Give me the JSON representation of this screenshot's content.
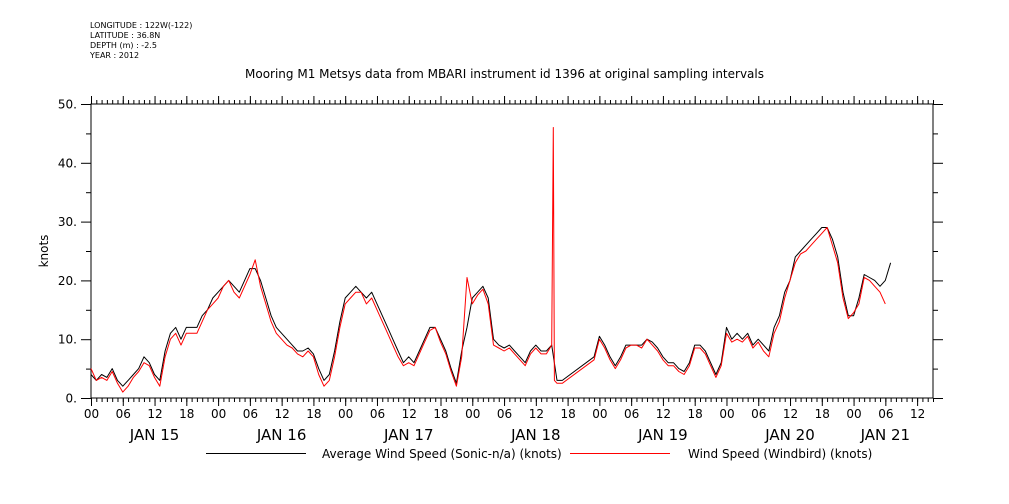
{
  "meta": {
    "longitude": "LONGITUDE : 122W(-122)",
    "latitude": "LATITUDE : 36.8N",
    "depth": "DEPTH (m) : -2.5",
    "year": "YEAR : 2012"
  },
  "chart_data": {
    "type": "line",
    "title": "Mooring M1 Metsys data from MBARI instrument id 1396 at original sampling intervals",
    "ylabel": "knots",
    "xlabel": "",
    "ylim": [
      0,
      50
    ],
    "xlim": [
      0,
      159
    ],
    "x_unit": "hours since JAN 15 00",
    "yticks": [
      0,
      10,
      20,
      30,
      40,
      50
    ],
    "ytick_labels": [
      "0.",
      "10.",
      "20.",
      "30.",
      "40.",
      "50."
    ],
    "hour_labels": [
      "00",
      "06",
      "12",
      "18",
      "00",
      "06",
      "12",
      "18",
      "00",
      "06",
      "12",
      "18",
      "00",
      "06",
      "12",
      "18",
      "00",
      "06",
      "12",
      "18",
      "00",
      "06",
      "12",
      "18",
      "00",
      "06",
      "12"
    ],
    "hour_positions": [
      0,
      6,
      12,
      18,
      24,
      30,
      36,
      42,
      48,
      54,
      60,
      66,
      72,
      78,
      84,
      90,
      96,
      102,
      108,
      114,
      120,
      126,
      132,
      138,
      144,
      150,
      156
    ],
    "day_labels": [
      "JAN 15",
      "JAN 16",
      "JAN 17",
      "JAN 18",
      "JAN 19",
      "JAN 20",
      "JAN 21"
    ],
    "day_positions": [
      12,
      36,
      60,
      84,
      108,
      132,
      150
    ],
    "grid": false,
    "legend_position": "bottom",
    "series": [
      {
        "name": "Average Wind Speed (Sonic-n/a) (knots)",
        "color": "#000000",
        "points": [
          [
            0,
            4
          ],
          [
            1,
            3
          ],
          [
            2,
            4
          ],
          [
            3,
            3.5
          ],
          [
            4,
            5
          ],
          [
            5,
            3
          ],
          [
            6,
            2
          ],
          [
            7,
            3
          ],
          [
            8,
            4
          ],
          [
            9,
            5
          ],
          [
            10,
            7
          ],
          [
            11,
            6
          ],
          [
            12,
            4
          ],
          [
            13,
            3
          ],
          [
            14,
            8
          ],
          [
            15,
            11
          ],
          [
            16,
            12
          ],
          [
            17,
            10
          ],
          [
            18,
            12
          ],
          [
            19,
            12
          ],
          [
            20,
            12
          ],
          [
            21,
            14
          ],
          [
            22,
            15
          ],
          [
            23,
            17
          ],
          [
            24,
            18
          ],
          [
            25,
            19
          ],
          [
            26,
            20
          ],
          [
            27,
            19
          ],
          [
            28,
            18
          ],
          [
            29,
            20
          ],
          [
            30,
            22
          ],
          [
            31,
            22
          ],
          [
            32,
            20
          ],
          [
            33,
            17
          ],
          [
            34,
            14
          ],
          [
            35,
            12
          ],
          [
            36,
            11
          ],
          [
            37,
            10
          ],
          [
            38,
            9
          ],
          [
            39,
            8
          ],
          [
            40,
            8
          ],
          [
            41,
            8.5
          ],
          [
            42,
            7.5
          ],
          [
            43,
            5
          ],
          [
            44,
            3
          ],
          [
            45,
            4
          ],
          [
            46,
            8
          ],
          [
            47,
            13
          ],
          [
            48,
            17
          ],
          [
            49,
            18
          ],
          [
            50,
            19
          ],
          [
            51,
            18
          ],
          [
            52,
            17
          ],
          [
            53,
            18
          ],
          [
            54,
            16
          ],
          [
            55,
            14
          ],
          [
            56,
            12
          ],
          [
            57,
            10
          ],
          [
            58,
            8
          ],
          [
            59,
            6
          ],
          [
            60,
            7
          ],
          [
            61,
            6
          ],
          [
            62,
            8
          ],
          [
            63,
            10
          ],
          [
            64,
            12
          ],
          [
            65,
            12
          ],
          [
            66,
            10
          ],
          [
            67,
            8
          ],
          [
            68,
            5
          ],
          [
            69,
            2.5
          ],
          [
            70,
            8
          ],
          [
            71,
            12
          ],
          [
            72,
            17
          ],
          [
            73,
            18
          ],
          [
            74,
            19
          ],
          [
            75,
            17
          ],
          [
            76,
            10
          ],
          [
            77,
            9
          ],
          [
            78,
            8.5
          ],
          [
            79,
            9
          ],
          [
            80,
            8
          ],
          [
            81,
            7
          ],
          [
            82,
            6
          ],
          [
            83,
            8
          ],
          [
            84,
            9
          ],
          [
            85,
            8
          ],
          [
            86,
            8
          ],
          [
            87,
            9
          ],
          [
            88,
            3
          ],
          [
            89,
            3
          ],
          [
            95,
            7
          ],
          [
            96,
            10.5
          ],
          [
            97,
            9
          ],
          [
            98,
            7
          ],
          [
            99,
            5.5
          ],
          [
            100,
            7
          ],
          [
            101,
            9
          ],
          [
            102,
            9
          ],
          [
            103,
            9
          ],
          [
            104,
            9
          ],
          [
            105,
            10
          ],
          [
            106,
            9.5
          ],
          [
            107,
            8.5
          ],
          [
            108,
            7
          ],
          [
            109,
            6
          ],
          [
            110,
            6
          ],
          [
            111,
            5
          ],
          [
            112,
            4.5
          ],
          [
            113,
            6
          ],
          [
            114,
            9
          ],
          [
            115,
            9
          ],
          [
            116,
            8
          ],
          [
            117,
            6
          ],
          [
            118,
            4
          ],
          [
            119,
            6
          ],
          [
            120,
            12
          ],
          [
            121,
            10
          ],
          [
            122,
            11
          ],
          [
            123,
            10
          ],
          [
            124,
            11
          ],
          [
            125,
            9
          ],
          [
            126,
            10
          ],
          [
            127,
            9
          ],
          [
            128,
            8
          ],
          [
            129,
            12
          ],
          [
            130,
            14
          ],
          [
            131,
            18
          ],
          [
            132,
            20
          ],
          [
            133,
            24
          ],
          [
            134,
            25
          ],
          [
            135,
            26
          ],
          [
            136,
            27
          ],
          [
            137,
            28
          ],
          [
            138,
            29
          ],
          [
            139,
            29
          ],
          [
            140,
            27
          ],
          [
            141,
            24
          ],
          [
            142,
            18
          ],
          [
            143,
            14
          ],
          [
            144,
            14
          ],
          [
            145,
            17
          ],
          [
            146,
            21
          ],
          [
            147,
            20.5
          ],
          [
            148,
            20
          ],
          [
            149,
            19
          ],
          [
            150,
            20
          ],
          [
            151,
            23
          ]
        ]
      },
      {
        "name": "Wind Speed (Windbird) (knots)",
        "color": "#ff0000",
        "points": [
          [
            0,
            5
          ],
          [
            1,
            3
          ],
          [
            2,
            3.5
          ],
          [
            3,
            3
          ],
          [
            4,
            4.5
          ],
          [
            5,
            2.5
          ],
          [
            6,
            1
          ],
          [
            7,
            2
          ],
          [
            8,
            3.5
          ],
          [
            9,
            4.5
          ],
          [
            10,
            6
          ],
          [
            11,
            5.5
          ],
          [
            12,
            3.5
          ],
          [
            13,
            2
          ],
          [
            14,
            7
          ],
          [
            15,
            10
          ],
          [
            16,
            11
          ],
          [
            17,
            9
          ],
          [
            18,
            11
          ],
          [
            19,
            11
          ],
          [
            20,
            11
          ],
          [
            21,
            13
          ],
          [
            22,
            15
          ],
          [
            23,
            16
          ],
          [
            24,
            17
          ],
          [
            25,
            19
          ],
          [
            26,
            20
          ],
          [
            27,
            18
          ],
          [
            28,
            17
          ],
          [
            29,
            19
          ],
          [
            30,
            21
          ],
          [
            31,
            23.5
          ],
          [
            32,
            19
          ],
          [
            33,
            16
          ],
          [
            34,
            13
          ],
          [
            35,
            11
          ],
          [
            36,
            10
          ],
          [
            37,
            9
          ],
          [
            38,
            8.5
          ],
          [
            39,
            7.5
          ],
          [
            40,
            7
          ],
          [
            41,
            8
          ],
          [
            42,
            7
          ],
          [
            43,
            4
          ],
          [
            44,
            2
          ],
          [
            45,
            3
          ],
          [
            46,
            7
          ],
          [
            47,
            12
          ],
          [
            48,
            16
          ],
          [
            49,
            17
          ],
          [
            50,
            18
          ],
          [
            51,
            18
          ],
          [
            52,
            16
          ],
          [
            53,
            17
          ],
          [
            54,
            15
          ],
          [
            55,
            13
          ],
          [
            56,
            11
          ],
          [
            57,
            9
          ],
          [
            58,
            7
          ],
          [
            59,
            5.5
          ],
          [
            60,
            6
          ],
          [
            61,
            5.5
          ],
          [
            62,
            7.5
          ],
          [
            63,
            9.5
          ],
          [
            64,
            11.5
          ],
          [
            65,
            12
          ],
          [
            66,
            9.5
          ],
          [
            67,
            7.5
          ],
          [
            68,
            4.5
          ],
          [
            69,
            2
          ],
          [
            70,
            7
          ],
          [
            71,
            20.5
          ],
          [
            72,
            16
          ],
          [
            73,
            17.5
          ],
          [
            74,
            18.5
          ],
          [
            75,
            16
          ],
          [
            76,
            9
          ],
          [
            77,
            8.5
          ],
          [
            78,
            8
          ],
          [
            79,
            8.5
          ],
          [
            80,
            7.5
          ],
          [
            81,
            6.5
          ],
          [
            82,
            5.5
          ],
          [
            83,
            7.5
          ],
          [
            84,
            8.5
          ],
          [
            85,
            7.5
          ],
          [
            86,
            7.5
          ],
          [
            87,
            9
          ],
          [
            87.3,
            46
          ],
          [
            87.5,
            3
          ],
          [
            88,
            2.5
          ],
          [
            89,
            2.5
          ],
          [
            95,
            6.5
          ],
          [
            96,
            10
          ],
          [
            97,
            8.5
          ],
          [
            98,
            6.5
          ],
          [
            99,
            5
          ],
          [
            100,
            6.5
          ],
          [
            101,
            8.5
          ],
          [
            102,
            9
          ],
          [
            103,
            9
          ],
          [
            104,
            8.5
          ],
          [
            105,
            10
          ],
          [
            106,
            9
          ],
          [
            107,
            8
          ],
          [
            108,
            6.5
          ],
          [
            109,
            5.5
          ],
          [
            110,
            5.5
          ],
          [
            111,
            4.5
          ],
          [
            112,
            4
          ],
          [
            113,
            5.5
          ],
          [
            114,
            8.5
          ],
          [
            115,
            8.5
          ],
          [
            116,
            7.5
          ],
          [
            117,
            5.5
          ],
          [
            118,
            3.5
          ],
          [
            119,
            5.5
          ],
          [
            120,
            11
          ],
          [
            121,
            9.5
          ],
          [
            122,
            10
          ],
          [
            123,
            9.5
          ],
          [
            124,
            10.5
          ],
          [
            125,
            8.5
          ],
          [
            126,
            9.5
          ],
          [
            127,
            8
          ],
          [
            128,
            7
          ],
          [
            129,
            11
          ],
          [
            130,
            13
          ],
          [
            131,
            17
          ],
          [
            132,
            20
          ],
          [
            133,
            23
          ],
          [
            134,
            24.5
          ],
          [
            135,
            25
          ],
          [
            136,
            26
          ],
          [
            137,
            27
          ],
          [
            138,
            28
          ],
          [
            139,
            29
          ],
          [
            140,
            26
          ],
          [
            141,
            23
          ],
          [
            142,
            17
          ],
          [
            143,
            13.5
          ],
          [
            144,
            14.5
          ],
          [
            145,
            16
          ],
          [
            146,
            20.5
          ],
          [
            147,
            20
          ],
          [
            148,
            19
          ],
          [
            149,
            18
          ],
          [
            150,
            16
          ]
        ]
      }
    ]
  }
}
